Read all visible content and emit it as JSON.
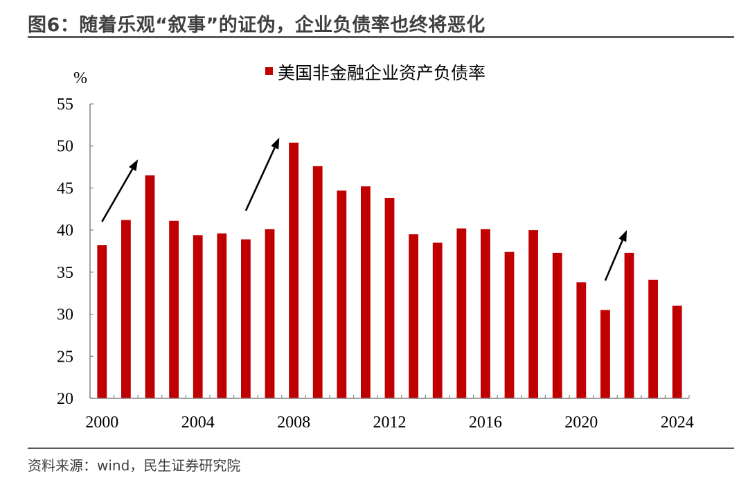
{
  "header": {
    "title": "图6：随着乐观“叙事”的证伪，企业负债率也终将恶化"
  },
  "footer": {
    "source": "资料来源：wind，民生证券研究院"
  },
  "colors": {
    "bar": "#C00000",
    "arrow": "#000000",
    "axis": "#808080",
    "rule": "#595959"
  },
  "chart_data": {
    "type": "bar",
    "title": "",
    "xlabel": "",
    "ylabel": "%",
    "ylim": [
      20,
      55
    ],
    "yticks": [
      20,
      25,
      30,
      35,
      40,
      45,
      50,
      55
    ],
    "grid": false,
    "legend_position": "top",
    "x_tick_labels": [
      "2000",
      "2004",
      "2008",
      "2012",
      "2016",
      "2020",
      "2024"
    ],
    "x": [
      2000,
      2001,
      2002,
      2003,
      2004,
      2005,
      2006,
      2007,
      2008,
      2009,
      2010,
      2011,
      2012,
      2013,
      2014,
      2015,
      2016,
      2017,
      2018,
      2019,
      2020,
      2021,
      2022,
      2023,
      2024
    ],
    "series": [
      {
        "name": "美国非金融企业资产负债率",
        "values": [
          38.2,
          41.2,
          46.5,
          41.1,
          39.4,
          39.6,
          38.9,
          40.1,
          50.4,
          47.6,
          44.7,
          45.2,
          43.8,
          39.5,
          38.5,
          40.2,
          40.1,
          37.4,
          40.0,
          37.3,
          33.8,
          30.5,
          37.3,
          34.1,
          31.0
        ]
      }
    ],
    "annotations": [
      {
        "type": "arrow",
        "from": [
          2000.0,
          41.0
        ],
        "to": [
          2001.5,
          48.4
        ]
      },
      {
        "type": "arrow",
        "from": [
          2006.0,
          42.3
        ],
        "to": [
          2007.4,
          51.0
        ]
      },
      {
        "type": "arrow",
        "from": [
          2021.0,
          34.0
        ],
        "to": [
          2021.9,
          40.0
        ]
      }
    ]
  }
}
